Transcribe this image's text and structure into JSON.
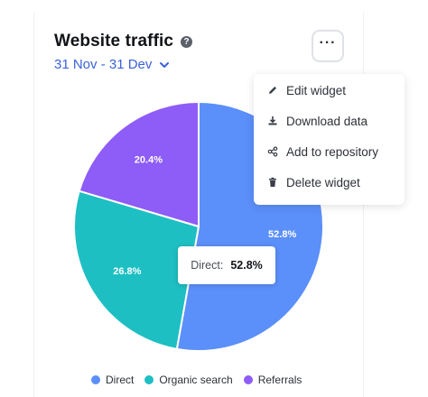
{
  "widget": {
    "title": "Website traffic",
    "info_icon": "info-icon",
    "date_range": "31 Nov - 31 Dev",
    "more_label": "···"
  },
  "menu": {
    "items": [
      {
        "label": "Edit widget",
        "icon": "pencil-icon"
      },
      {
        "label": "Download data",
        "icon": "download-icon"
      },
      {
        "label": "Add to repository",
        "icon": "share-icon"
      },
      {
        "label": "Delete widget",
        "icon": "trash-icon"
      }
    ]
  },
  "tooltip": {
    "label": "Direct:",
    "value": "52.8%"
  },
  "colors": {
    "direct": "#5b8ff9",
    "organic": "#1dbfc3",
    "referrals": "#8e5cf6",
    "accent": "#3a63d8"
  },
  "chart_data": {
    "type": "pie",
    "title": "",
    "labels": [
      "Direct",
      "Organic search",
      "Referrals"
    ],
    "values": [
      52.8,
      26.8,
      20.4
    ],
    "value_labels": [
      "52.8%",
      "26.8%",
      "20.4%"
    ],
    "colors": [
      "#5b8ff9",
      "#1dbfc3",
      "#8e5cf6"
    ],
    "legend_position": "bottom"
  }
}
